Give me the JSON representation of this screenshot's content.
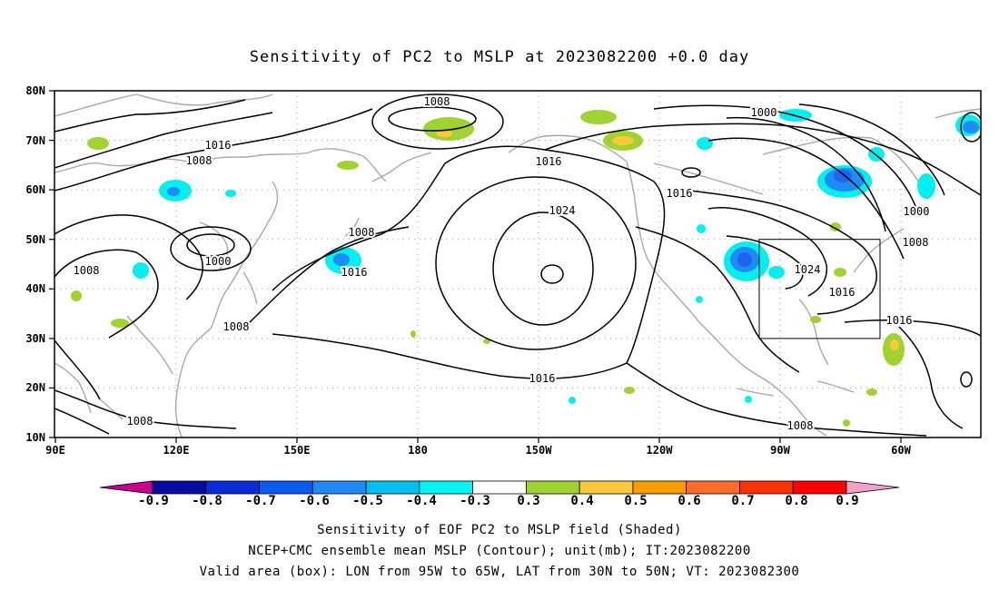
{
  "title": "Sensitivity of PC2 to MSLP at 2023082200 +0.0 day",
  "lat_ticks": [
    "80N",
    "70N",
    "60N",
    "50N",
    "40N",
    "30N",
    "20N",
    "10N"
  ],
  "lon_ticks": [
    "90E",
    "120E",
    "150E",
    "180",
    "150W",
    "120W",
    "90W",
    "60W"
  ],
  "contour_labels": [
    "1008",
    "1000",
    "1016",
    "1008",
    "1016",
    "1024",
    "1008",
    "1016",
    "1008",
    "1000",
    "1016",
    "1024",
    "1008",
    "1008",
    "1016",
    "1016",
    "1008",
    "1016",
    "1000",
    "1008"
  ],
  "colorbar": {
    "labels": [
      "-0.9",
      "-0.8",
      "-0.7",
      "-0.6",
      "-0.5",
      "-0.4",
      "-0.3",
      "0.3",
      "0.4",
      "0.5",
      "0.6",
      "0.7",
      "0.8",
      "0.9"
    ],
    "colors": [
      "#c8008c",
      "#0a0a9e",
      "#0a2cd8",
      "#0a5af0",
      "#1e8cf5",
      "#00c0f0",
      "#00f5f5",
      "#ffffff",
      "#a0d232",
      "#ffc83c",
      "#ff9a00",
      "#ff6e28",
      "#ff3200",
      "#ff0000",
      "#f5a0c8"
    ]
  },
  "shading_colors": {
    "cyan": "#00f0f0",
    "light_blue": "#14b4f0",
    "blue": "#1e64f0",
    "green": "#a0d232",
    "yellow": "#ffc83c",
    "orange": "#ff9a00"
  },
  "caption": {
    "line1": "Sensitivity of EOF PC2 to MSLP field (Shaded)",
    "line2": "NCEP+CMC ensemble mean MSLP (Contour); unit(mb); IT:2023082200",
    "line3": "Valid area (box): LON from 95W to 65W, LAT from 30N to 50N; VT: 2023082300"
  },
  "valid_box": {
    "lon_min": -95,
    "lon_max": -65,
    "lat_min": 30,
    "lat_max": 50
  }
}
